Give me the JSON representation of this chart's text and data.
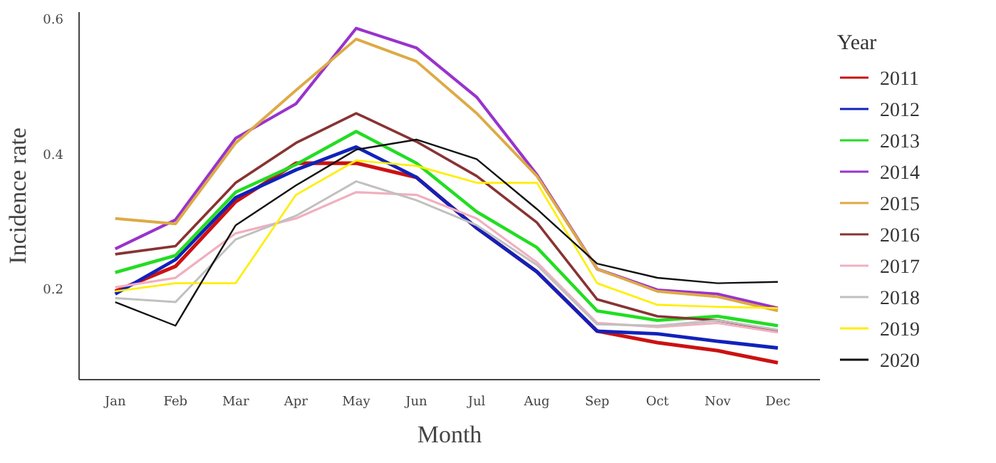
{
  "chart_data": {
    "type": "line",
    "xlabel": "Month",
    "ylabel": "Incidence rate",
    "legend_title": "Year",
    "legend": "right",
    "grid": false,
    "marker": "none",
    "line_style": "solid",
    "categories": [
      "Jan",
      "Feb",
      "Mar",
      "Apr",
      "May",
      "Jun",
      "Jul",
      "Aug",
      "Sep",
      "Oct",
      "Nov",
      "Dec"
    ],
    "ylim": [
      0.065,
      0.61
    ],
    "yticks": [
      0.2,
      0.4,
      0.6
    ],
    "series": [
      {
        "name": "2011",
        "color": "#cc1111",
        "values": [
          0.196,
          0.233,
          0.329,
          0.386,
          0.386,
          0.365,
          0.29,
          0.225,
          0.137,
          0.12,
          0.108,
          0.09
        ]
      },
      {
        "name": "2012",
        "color": "#1122bb",
        "values": [
          0.192,
          0.243,
          0.335,
          0.376,
          0.41,
          0.365,
          0.29,
          0.225,
          0.137,
          0.133,
          0.122,
          0.112
        ]
      },
      {
        "name": "2013",
        "color": "#22dd22",
        "values": [
          0.224,
          0.249,
          0.343,
          0.384,
          0.433,
          0.386,
          0.314,
          0.261,
          0.167,
          0.153,
          0.159,
          0.145
        ]
      },
      {
        "name": "2014",
        "color": "#9933cc",
        "values": [
          0.259,
          0.302,
          0.423,
          0.474,
          0.586,
          0.557,
          0.484,
          0.369,
          0.229,
          0.198,
          0.192,
          0.171
        ]
      },
      {
        "name": "2015",
        "color": "#ddaa44",
        "values": [
          0.304,
          0.296,
          0.416,
          0.494,
          0.57,
          0.537,
          0.46,
          0.367,
          0.229,
          0.196,
          0.188,
          0.167
        ]
      },
      {
        "name": "2016",
        "color": "#883333",
        "values": [
          0.251,
          0.263,
          0.357,
          0.416,
          0.46,
          0.418,
          0.367,
          0.298,
          0.184,
          0.159,
          0.153,
          0.137
        ]
      },
      {
        "name": "2017",
        "color": "#f0b0c0",
        "values": [
          0.202,
          0.216,
          0.282,
          0.304,
          0.343,
          0.339,
          0.304,
          0.239,
          0.149,
          0.143,
          0.149,
          0.135
        ]
      },
      {
        "name": "2018",
        "color": "#c0c0c0",
        "values": [
          0.186,
          0.18,
          0.273,
          0.308,
          0.359,
          0.331,
          0.294,
          0.235,
          0.147,
          0.145,
          0.153,
          0.139
        ]
      },
      {
        "name": "2019",
        "color": "#ffee00",
        "values": [
          0.196,
          0.208,
          0.208,
          0.339,
          0.39,
          0.382,
          0.357,
          0.357,
          0.208,
          0.176,
          0.173,
          0.171
        ]
      },
      {
        "name": "2020",
        "color": "#111111",
        "values": [
          0.18,
          0.145,
          0.294,
          0.353,
          0.406,
          0.421,
          0.392,
          0.318,
          0.237,
          0.216,
          0.208,
          0.21
        ]
      }
    ]
  }
}
